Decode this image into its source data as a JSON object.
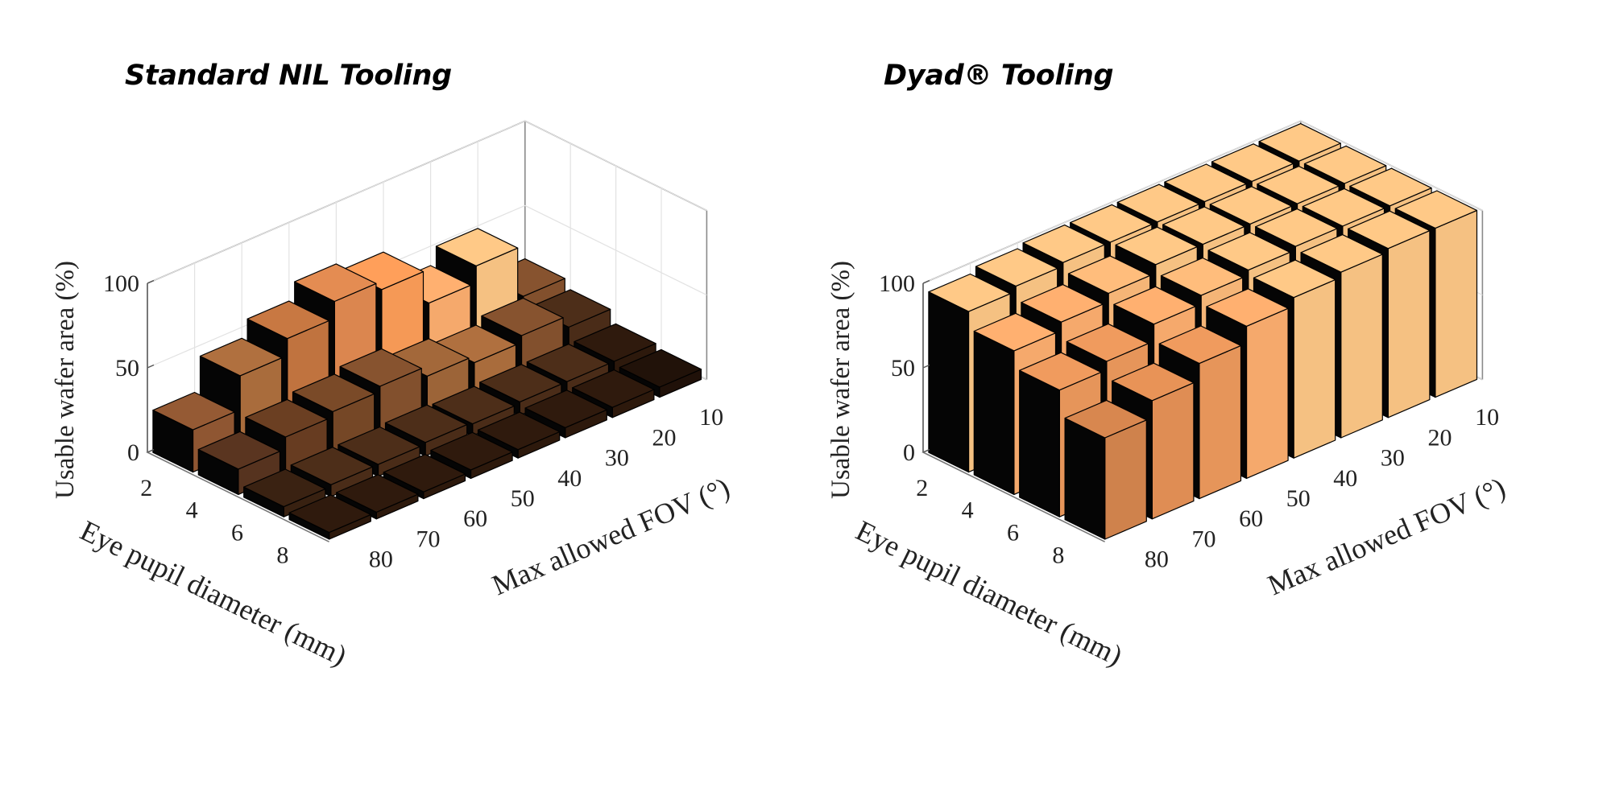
{
  "chart_data": [
    {
      "type": "bar3d",
      "title": "Standard NIL Tooling",
      "zlabel": "Usable wafer area (%)",
      "xlabel": "Max allowed FOV (°)",
      "ylabel": "Eye pupil diameter (mm)",
      "fov": [
        10,
        20,
        30,
        40,
        50,
        60,
        70,
        80
      ],
      "pupil": [
        2,
        4,
        6,
        8
      ],
      "z_ticks": [
        0,
        50,
        100
      ],
      "zlim": [
        0,
        100
      ],
      "values": [
        [
          20,
          15,
          8,
          6
        ],
        [
          50,
          22,
          8,
          6
        ],
        [
          40,
          18,
          8,
          6
        ],
        [
          60,
          22,
          7,
          5
        ],
        [
          65,
          28,
          8,
          5
        ],
        [
          55,
          25,
          7,
          4
        ],
        [
          45,
          22,
          7,
          4
        ],
        [
          25,
          15,
          6,
          4
        ]
      ],
      "colors": [
        [
          "#87532f",
          "#4d2e19",
          "#2f1a0d",
          "#211209"
        ],
        [
          "#ffc987",
          "#87532f",
          "#4d2e19",
          "#2f1a0d"
        ],
        [
          "#ffb070",
          "#b0703f",
          "#4d2e19",
          "#2f1a0d"
        ],
        [
          "#ff9f5a",
          "#a3683a",
          "#4d2e19",
          "#2f1a0d"
        ],
        [
          "#e48c52",
          "#87532f",
          "#4d2e19",
          "#2f1a0d"
        ],
        [
          "#c87842",
          "#7a4a28",
          "#4d2e19",
          "#2f1a0d"
        ],
        [
          "#b0703f",
          "#6b3f22",
          "#4d2e19",
          "#2f1a0d"
        ],
        [
          "#955a34",
          "#5a3520",
          "#3a2212",
          "#2f1a0d"
        ]
      ]
    },
    {
      "type": "bar3d",
      "title": "Dyad® Tooling",
      "zlabel": "Usable wafer area (%)",
      "xlabel": "Max allowed FOV (°)",
      "ylabel": "Eye pupil diameter (mm)",
      "fov": [
        10,
        20,
        30,
        40,
        50,
        60,
        70,
        80
      ],
      "pupil": [
        2,
        4,
        6,
        8
      ],
      "z_ticks": [
        0,
        50,
        100
      ],
      "zlim": [
        0,
        100
      ],
      "values": [
        [
          100,
          100,
          100,
          100
        ],
        [
          100,
          100,
          100,
          100
        ],
        [
          100,
          100,
          100,
          98
        ],
        [
          100,
          100,
          98,
          95
        ],
        [
          100,
          100,
          95,
          90
        ],
        [
          100,
          95,
          90,
          80
        ],
        [
          98,
          90,
          80,
          70
        ],
        [
          95,
          85,
          75,
          60
        ]
      ],
      "colors": [
        [
          "#ffc987",
          "#ffc987",
          "#ffc987",
          "#ffc987"
        ],
        [
          "#ffc987",
          "#ffc987",
          "#ffc987",
          "#ffc987"
        ],
        [
          "#ffc987",
          "#ffc987",
          "#ffc987",
          "#ffc987"
        ],
        [
          "#ffc987",
          "#ffc987",
          "#ffc987",
          "#ffc987"
        ],
        [
          "#ffc987",
          "#ffc987",
          "#ffbd7c",
          "#ffb070"
        ],
        [
          "#ffc987",
          "#ffbd7c",
          "#ffb070",
          "#f09b5e"
        ],
        [
          "#ffc987",
          "#ffb070",
          "#f09b5e",
          "#e89357"
        ],
        [
          "#ffc987",
          "#ffb070",
          "#f09b5e",
          "#d8874f"
        ]
      ]
    }
  ]
}
